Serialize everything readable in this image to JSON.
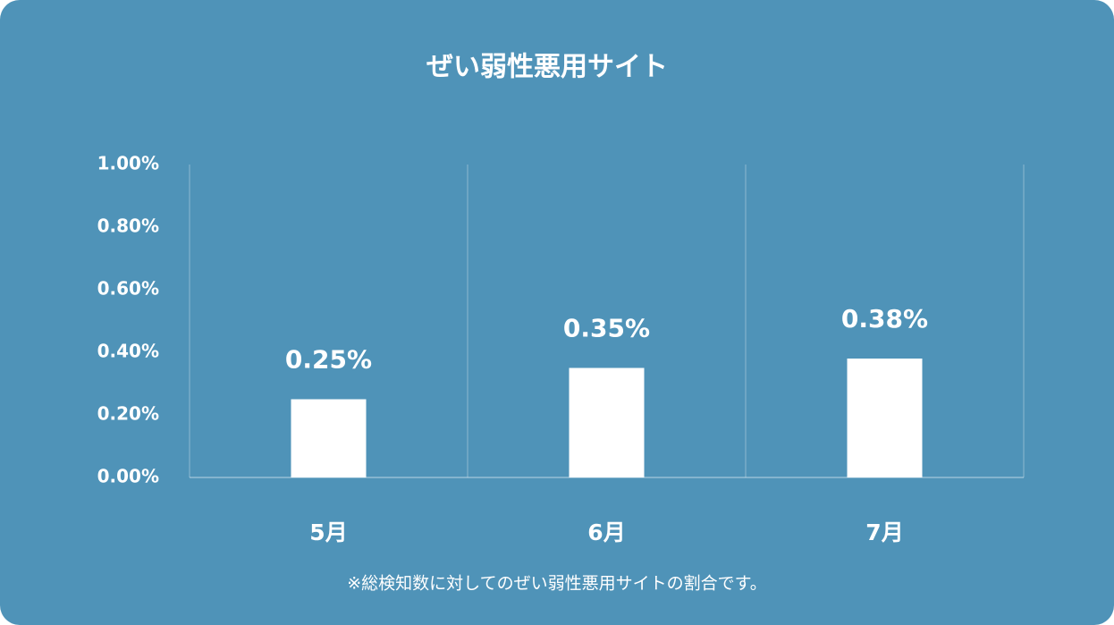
{
  "chart_data": {
    "type": "bar",
    "title": "ぜい弱性悪用サイト",
    "categories": [
      "5月",
      "6月",
      "7月"
    ],
    "values": [
      0.25,
      0.35,
      0.38
    ],
    "value_labels": [
      "0.25%",
      "0.35%",
      "0.38%"
    ],
    "color": "#ffffff",
    "ylim": [
      0,
      1
    ],
    "yticks": [
      {
        "value": 0,
        "label": "0.00%"
      },
      {
        "value": 0.2,
        "label": "0.20%"
      },
      {
        "value": 0.4,
        "label": "0.40%"
      },
      {
        "value": 0.6,
        "label": "0.60%"
      },
      {
        "value": 0.8,
        "label": "0.80%"
      },
      {
        "value": 1,
        "label": "1.00%"
      }
    ],
    "grid": false,
    "note": "※総検知数に対してのぜい弱性悪用サイトの割合です。"
  }
}
